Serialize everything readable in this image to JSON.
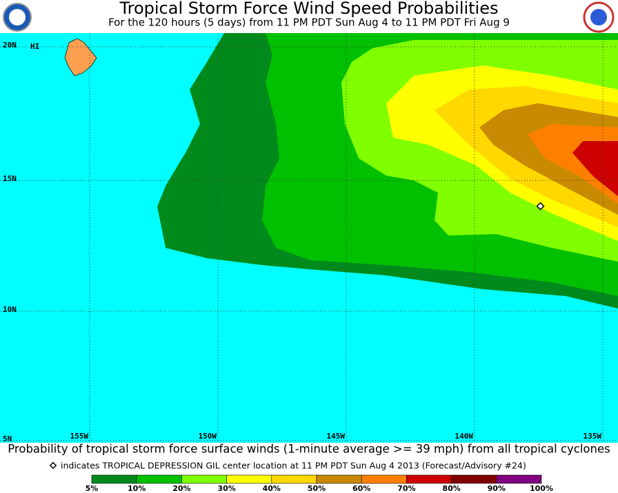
{
  "header": {
    "title": "Tropical Storm Force Wind Speed Probabilities",
    "subtitle": "For the 120 hours (5 days) from 11 PM PDT Sun Aug 4 to 11 PM PDT Fri Aug 9"
  },
  "map": {
    "lat_labels": [
      "20N",
      "15N",
      "10N",
      "5N"
    ],
    "lon_labels": [
      "155W",
      "150W",
      "145W",
      "140W",
      "135W"
    ],
    "place_label": "HI"
  },
  "caption": "Probability of tropical storm force surface winds (1-minute average >= 39 mph) from all tropical cyclones",
  "marker_note": "indicates TROPICAL DEPRESSION GIL center location at 11 PM PDT Sun Aug 4 2013 (Forecast/Advisory #24)",
  "legend": [
    {
      "label": "5%",
      "color": "#008a1c"
    },
    {
      "label": "10%",
      "color": "#00c000"
    },
    {
      "label": "20%",
      "color": "#80ff00"
    },
    {
      "label": "30%",
      "color": "#ffff00"
    },
    {
      "label": "40%",
      "color": "#ffd800"
    },
    {
      "label": "50%",
      "color": "#c88a00"
    },
    {
      "label": "60%",
      "color": "#ff8000"
    },
    {
      "label": "70%",
      "color": "#cc0000"
    },
    {
      "label": "80%",
      "color": "#800000"
    },
    {
      "label": "90%",
      "color": "#800080"
    },
    {
      "label": "100%",
      "color": null
    }
  ]
}
